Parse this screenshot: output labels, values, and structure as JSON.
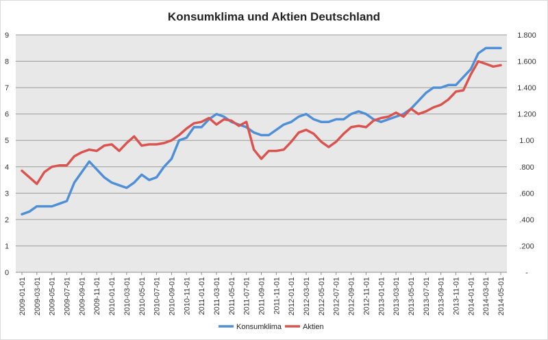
{
  "chart_data": {
    "type": "line",
    "title": "Konsumklima und Aktien Deutschland",
    "xlabel": "",
    "ylabel": "",
    "x": [
      "2009-01-01",
      "2009-02-01",
      "2009-03-01",
      "2009-04-01",
      "2009-05-01",
      "2009-06-01",
      "2009-07-01",
      "2009-08-01",
      "2009-09-01",
      "2009-10-01",
      "2009-11-01",
      "2009-12-01",
      "2010-01-01",
      "2010-02-01",
      "2010-03-01",
      "2010-04-01",
      "2010-05-01",
      "2010-06-01",
      "2010-07-01",
      "2010-08-01",
      "2010-09-01",
      "2010-10-01",
      "2010-11-01",
      "2010-12-01",
      "2011-01-01",
      "2011-02-01",
      "2011-03-01",
      "2011-04-01",
      "2011-05-01",
      "2011-06-01",
      "2011-07-01",
      "2011-08-01",
      "2011-09-01",
      "2011-10-01",
      "2011-11-01",
      "2011-12-01",
      "2012-01-01",
      "2012-02-01",
      "2012-03-01",
      "2012-04-01",
      "2012-05-01",
      "2012-06-01",
      "2012-07-01",
      "2012-08-01",
      "2012-09-01",
      "2012-10-01",
      "2012-11-01",
      "2012-12-01",
      "2013-01-01",
      "2013-02-01",
      "2013-03-01",
      "2013-04-01",
      "2013-05-01",
      "2013-06-01",
      "2013-07-01",
      "2013-08-01",
      "2013-09-01",
      "2013-10-01",
      "2013-11-01",
      "2013-12-01",
      "2014-01-01",
      "2014-02-01",
      "2014-03-01",
      "2014-04-01",
      "2014-05-01"
    ],
    "x_tick_labels": [
      "2009-01-01",
      "2009-03-01",
      "2009-05-01",
      "2009-07-01",
      "2009-09-01",
      "2009-11-01",
      "2010-01-01",
      "2010-03-01",
      "2010-05-01",
      "2010-07-01",
      "2010-09-01",
      "2010-11-01",
      "2011-01-01",
      "2011-03-01",
      "2011-05-01",
      "2011-07-01",
      "2011-09-01",
      "2011-11-01",
      "2012-01-01",
      "2012-03-01",
      "2012-05-01",
      "2012-07-01",
      "2012-09-01",
      "2012-11-01",
      "2013-01-01",
      "2013-03-01",
      "2013-05-01",
      "2013-07-01",
      "2013-09-01",
      "2013-11-01",
      "2014-01-01",
      "2014-03-01",
      "2014-05-01"
    ],
    "y_left": {
      "ylim": [
        0,
        9
      ],
      "ticks": [
        "0",
        "1",
        "2",
        "3",
        "4",
        "5",
        "6",
        "7",
        "8",
        "9"
      ]
    },
    "y_right": {
      "ylim": [
        0,
        1.8
      ],
      "ticks": [
        "-",
        ".200",
        ".400",
        ".600",
        ".800",
        "1.00",
        "1.200",
        "1.400",
        "1.600",
        "1.800"
      ]
    },
    "grid": true,
    "legend_position": "bottom",
    "series": [
      {
        "name": "Konsumklima",
        "axis": "left",
        "color": "#4f8fd6",
        "values": [
          2.2,
          2.3,
          2.5,
          2.5,
          2.5,
          2.6,
          2.7,
          3.4,
          3.8,
          4.2,
          3.9,
          3.6,
          3.4,
          3.3,
          3.2,
          3.4,
          3.7,
          3.5,
          3.6,
          4.0,
          4.3,
          5.0,
          5.1,
          5.5,
          5.5,
          5.8,
          6.0,
          5.9,
          5.7,
          5.6,
          5.5,
          5.3,
          5.2,
          5.2,
          5.4,
          5.6,
          5.7,
          5.9,
          6.0,
          5.8,
          5.7,
          5.7,
          5.8,
          5.8,
          6.0,
          6.1,
          6.0,
          5.8,
          5.7,
          5.8,
          5.9,
          6.0,
          6.2,
          6.5,
          6.8,
          7.0,
          7.0,
          7.1,
          7.1,
          7.4,
          7.7,
          8.3,
          8.5,
          8.5,
          8.5
        ]
      },
      {
        "name": "Aktien",
        "axis": "right",
        "color": "#d9534f",
        "values": [
          0.77,
          0.72,
          0.67,
          0.76,
          0.8,
          0.81,
          0.81,
          0.88,
          0.91,
          0.93,
          0.92,
          0.96,
          0.97,
          0.92,
          0.98,
          1.03,
          0.96,
          0.97,
          0.97,
          0.98,
          1.0,
          1.04,
          1.09,
          1.13,
          1.14,
          1.17,
          1.12,
          1.16,
          1.15,
          1.11,
          1.14,
          0.93,
          0.86,
          0.92,
          0.92,
          0.93,
          0.99,
          1.06,
          1.08,
          1.05,
          0.99,
          0.95,
          0.99,
          1.05,
          1.1,
          1.11,
          1.1,
          1.15,
          1.17,
          1.18,
          1.21,
          1.18,
          1.24,
          1.2,
          1.22,
          1.25,
          1.27,
          1.31,
          1.37,
          1.38,
          1.5,
          1.6,
          1.58,
          1.56,
          1.57
        ]
      }
    ]
  }
}
